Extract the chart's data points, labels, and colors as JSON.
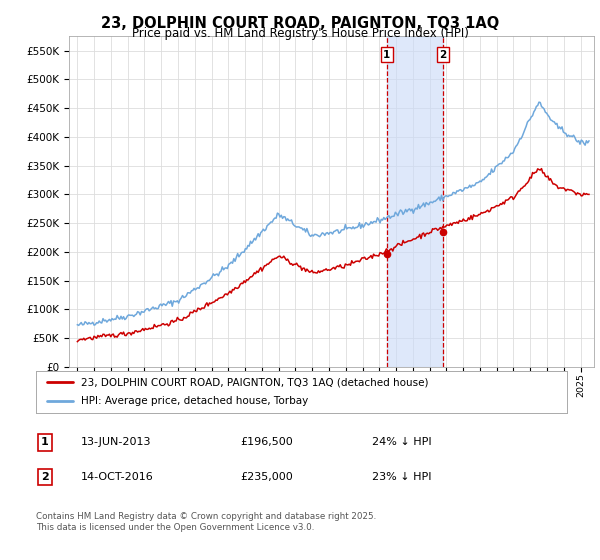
{
  "title": "23, DOLPHIN COURT ROAD, PAIGNTON, TQ3 1AQ",
  "subtitle": "Price paid vs. HM Land Registry's House Price Index (HPI)",
  "ylabel_ticks": [
    "£0",
    "£50K",
    "£100K",
    "£150K",
    "£200K",
    "£250K",
    "£300K",
    "£350K",
    "£400K",
    "£450K",
    "£500K",
    "£550K"
  ],
  "ytick_values": [
    0,
    50000,
    100000,
    150000,
    200000,
    250000,
    300000,
    350000,
    400000,
    450000,
    500000,
    550000
  ],
  "ylim": [
    0,
    575000
  ],
  "hpi_color": "#6fa8dc",
  "price_color": "#cc0000",
  "transaction1_x": 2013.45,
  "transaction1_price": 196500,
  "transaction2_x": 2016.79,
  "transaction2_price": 235000,
  "legend_line1": "23, DOLPHIN COURT ROAD, PAIGNTON, TQ3 1AQ (detached house)",
  "legend_line2": "HPI: Average price, detached house, Torbay",
  "annotation1_date": "13-JUN-2013",
  "annotation1_price": "£196,500",
  "annotation1_hpi": "24% ↓ HPI",
  "annotation2_date": "14-OCT-2016",
  "annotation2_price": "£235,000",
  "annotation2_hpi": "23% ↓ HPI",
  "footer": "Contains HM Land Registry data © Crown copyright and database right 2025.\nThis data is licensed under the Open Government Licence v3.0.",
  "background_color": "#ffffff",
  "grid_color": "#dddddd",
  "shade_color": "#c9daf8"
}
